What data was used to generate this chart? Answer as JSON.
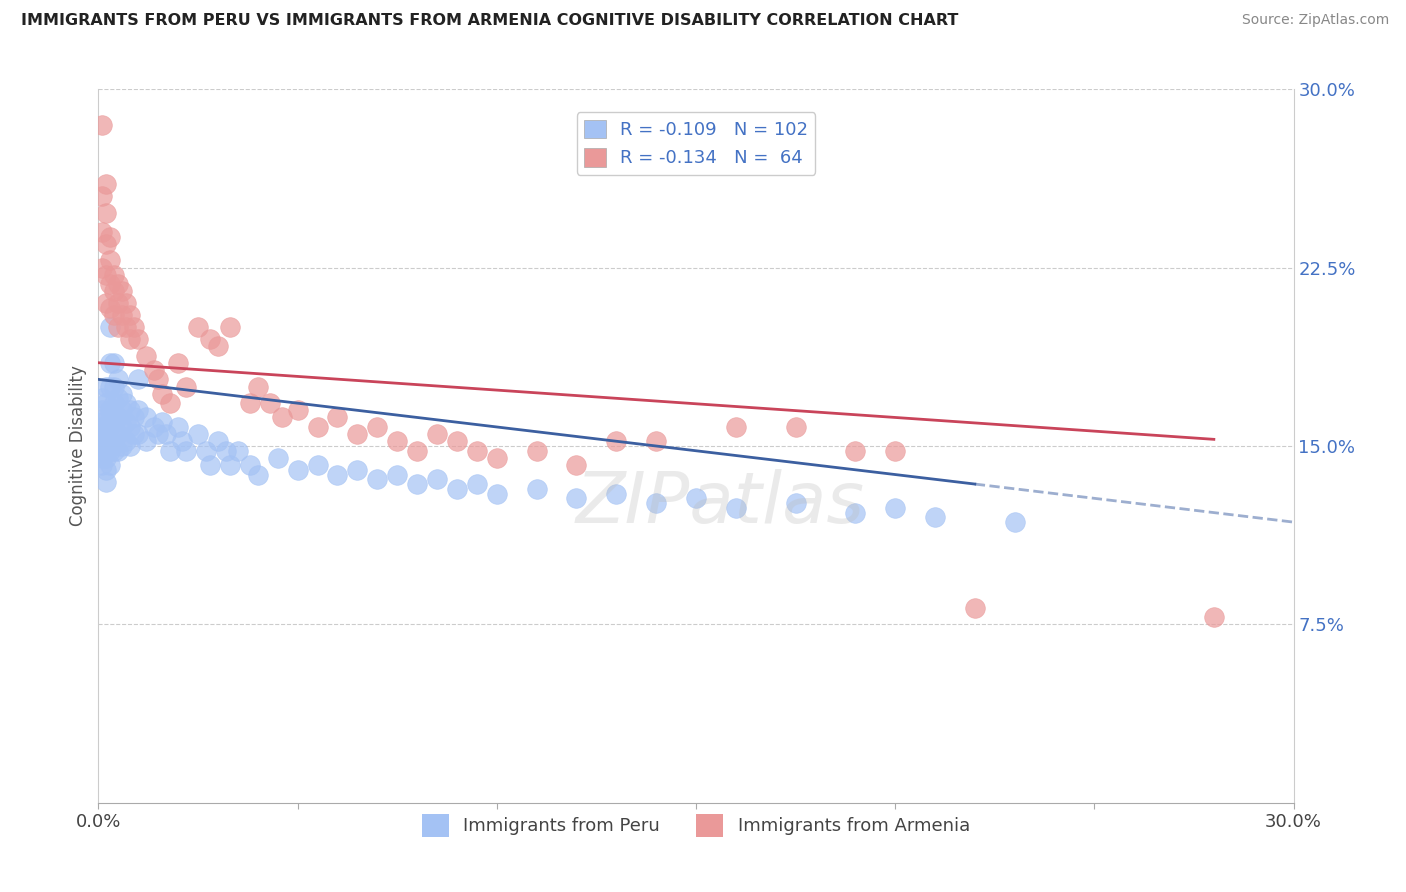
{
  "title": "IMMIGRANTS FROM PERU VS IMMIGRANTS FROM ARMENIA COGNITIVE DISABILITY CORRELATION CHART",
  "source": "Source: ZipAtlas.com",
  "ylabel": "Cognitive Disability",
  "x_min": 0.0,
  "x_max": 0.3,
  "y_min": 0.0,
  "y_max": 0.3,
  "blue_color": "#a4c2f4",
  "pink_color": "#ea9999",
  "blue_line_color": "#3c5fa0",
  "pink_line_color": "#c9445a",
  "legend_R_blue": "-0.109",
  "legend_N_blue": "102",
  "legend_R_pink": "-0.134",
  "legend_N_pink": "64",
  "label_blue": "Immigrants from Peru",
  "label_pink": "Immigrants from Armenia",
  "watermark": "ZIPatlas",
  "peru_x": [
    0.001,
    0.001,
    0.001,
    0.001,
    0.001,
    0.001,
    0.001,
    0.001,
    0.001,
    0.001,
    0.002,
    0.002,
    0.002,
    0.002,
    0.002,
    0.002,
    0.002,
    0.002,
    0.002,
    0.003,
    0.003,
    0.003,
    0.003,
    0.003,
    0.003,
    0.003,
    0.003,
    0.004,
    0.004,
    0.004,
    0.004,
    0.004,
    0.004,
    0.005,
    0.005,
    0.005,
    0.005,
    0.005,
    0.006,
    0.006,
    0.006,
    0.006,
    0.007,
    0.007,
    0.007,
    0.008,
    0.008,
    0.008,
    0.009,
    0.009,
    0.01,
    0.01,
    0.01,
    0.012,
    0.012,
    0.014,
    0.015,
    0.016,
    0.017,
    0.018,
    0.02,
    0.021,
    0.022,
    0.025,
    0.027,
    0.028,
    0.03,
    0.032,
    0.033,
    0.035,
    0.038,
    0.04,
    0.045,
    0.05,
    0.055,
    0.06,
    0.065,
    0.07,
    0.075,
    0.08,
    0.085,
    0.09,
    0.095,
    0.1,
    0.11,
    0.12,
    0.13,
    0.14,
    0.15,
    0.16,
    0.175,
    0.19,
    0.2,
    0.21,
    0.23
  ],
  "peru_y": [
    0.17,
    0.165,
    0.16,
    0.158,
    0.155,
    0.152,
    0.15,
    0.148,
    0.145,
    0.142,
    0.175,
    0.168,
    0.162,
    0.158,
    0.155,
    0.15,
    0.145,
    0.14,
    0.135,
    0.2,
    0.185,
    0.175,
    0.165,
    0.158,
    0.152,
    0.148,
    0.142,
    0.185,
    0.175,
    0.168,
    0.162,
    0.155,
    0.148,
    0.178,
    0.17,
    0.162,
    0.155,
    0.148,
    0.172,
    0.165,
    0.158,
    0.15,
    0.168,
    0.16,
    0.152,
    0.165,
    0.158,
    0.15,
    0.162,
    0.155,
    0.178,
    0.165,
    0.155,
    0.162,
    0.152,
    0.158,
    0.155,
    0.16,
    0.155,
    0.148,
    0.158,
    0.152,
    0.148,
    0.155,
    0.148,
    0.142,
    0.152,
    0.148,
    0.142,
    0.148,
    0.142,
    0.138,
    0.145,
    0.14,
    0.142,
    0.138,
    0.14,
    0.136,
    0.138,
    0.134,
    0.136,
    0.132,
    0.134,
    0.13,
    0.132,
    0.128,
    0.13,
    0.126,
    0.128,
    0.124,
    0.126,
    0.122,
    0.124,
    0.12,
    0.118
  ],
  "armenia_x": [
    0.001,
    0.001,
    0.001,
    0.001,
    0.002,
    0.002,
    0.002,
    0.002,
    0.002,
    0.003,
    0.003,
    0.003,
    0.003,
    0.004,
    0.004,
    0.004,
    0.005,
    0.005,
    0.005,
    0.006,
    0.006,
    0.007,
    0.007,
    0.008,
    0.008,
    0.009,
    0.01,
    0.012,
    0.014,
    0.015,
    0.016,
    0.018,
    0.02,
    0.022,
    0.025,
    0.028,
    0.03,
    0.033,
    0.038,
    0.04,
    0.043,
    0.046,
    0.05,
    0.055,
    0.06,
    0.065,
    0.07,
    0.075,
    0.08,
    0.085,
    0.09,
    0.095,
    0.1,
    0.11,
    0.12,
    0.13,
    0.14,
    0.16,
    0.175,
    0.19,
    0.2,
    0.22,
    0.28
  ],
  "armenia_y": [
    0.285,
    0.255,
    0.24,
    0.225,
    0.26,
    0.248,
    0.235,
    0.222,
    0.21,
    0.238,
    0.228,
    0.218,
    0.208,
    0.222,
    0.215,
    0.205,
    0.218,
    0.21,
    0.2,
    0.215,
    0.205,
    0.21,
    0.2,
    0.205,
    0.195,
    0.2,
    0.195,
    0.188,
    0.182,
    0.178,
    0.172,
    0.168,
    0.185,
    0.175,
    0.2,
    0.195,
    0.192,
    0.2,
    0.168,
    0.175,
    0.168,
    0.162,
    0.165,
    0.158,
    0.162,
    0.155,
    0.158,
    0.152,
    0.148,
    0.155,
    0.152,
    0.148,
    0.145,
    0.148,
    0.142,
    0.152,
    0.152,
    0.158,
    0.158,
    0.148,
    0.148,
    0.082,
    0.078
  ]
}
